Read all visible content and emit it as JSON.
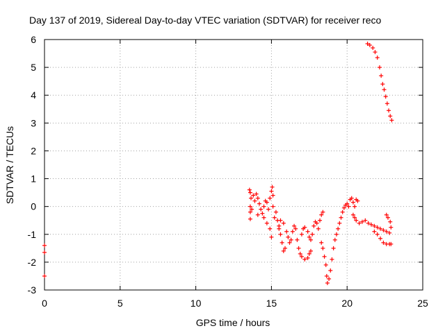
{
  "chart_data": {
    "type": "scatter",
    "title": "Day 137 of 2019, Sidereal Day-to-day VTEC variation (SDTVAR) for receiver reco",
    "xlabel": "GPS time / hours",
    "ylabel": "SDTVAR / TECUs",
    "xlim": [
      0,
      25
    ],
    "ylim": [
      -3,
      6
    ],
    "x_ticks": [
      "0",
      "5",
      "10",
      "15",
      "20",
      "25"
    ],
    "y_ticks": [
      "-3",
      "-2",
      "-1",
      "0",
      "1",
      "2",
      "3",
      "4",
      "5",
      "6"
    ],
    "grid": true,
    "marker": "+",
    "series": [
      {
        "name": "SDTVAR",
        "color": "#ff0000",
        "points": [
          [
            0.0,
            -1.4
          ],
          [
            0.0,
            -1.65
          ],
          [
            0.0,
            -2.5
          ],
          [
            13.55,
            0.6
          ],
          [
            13.6,
            0.5
          ],
          [
            13.65,
            0.3
          ],
          [
            13.6,
            0.0
          ],
          [
            13.6,
            -0.2
          ],
          [
            13.6,
            -0.45
          ],
          [
            13.7,
            -0.1
          ],
          [
            13.8,
            0.4
          ],
          [
            13.9,
            0.2
          ],
          [
            14.0,
            0.45
          ],
          [
            14.1,
            0.3
          ],
          [
            14.2,
            0.1
          ],
          [
            14.3,
            -0.1
          ],
          [
            14.1,
            -0.3
          ],
          [
            14.4,
            -0.25
          ],
          [
            14.5,
            0.0
          ],
          [
            14.6,
            0.2
          ],
          [
            14.7,
            0.15
          ],
          [
            14.8,
            -0.1
          ],
          [
            14.9,
            0.3
          ],
          [
            15.0,
            0.55
          ],
          [
            15.05,
            0.7
          ],
          [
            15.1,
            0.4
          ],
          [
            15.1,
            0.0
          ],
          [
            14.5,
            -0.4
          ],
          [
            14.7,
            -0.6
          ],
          [
            14.9,
            -0.8
          ],
          [
            15.0,
            -1.1
          ],
          [
            15.2,
            -0.4
          ],
          [
            15.3,
            -0.2
          ],
          [
            15.4,
            -0.5
          ],
          [
            15.5,
            -0.8
          ],
          [
            15.6,
            -1.0
          ],
          [
            15.7,
            -1.3
          ],
          [
            15.8,
            -1.6
          ],
          [
            15.9,
            -1.5
          ],
          [
            15.5,
            -0.7
          ],
          [
            15.6,
            -0.5
          ],
          [
            15.8,
            -0.6
          ],
          [
            16.0,
            -0.9
          ],
          [
            16.1,
            -1.1
          ],
          [
            16.2,
            -1.3
          ],
          [
            16.3,
            -1.2
          ],
          [
            16.4,
            -0.9
          ],
          [
            16.5,
            -0.7
          ],
          [
            16.6,
            -0.8
          ],
          [
            16.7,
            -1.2
          ],
          [
            16.8,
            -1.5
          ],
          [
            16.9,
            -1.7
          ],
          [
            17.0,
            -1.8
          ],
          [
            17.2,
            -1.9
          ],
          [
            17.4,
            -1.85
          ],
          [
            17.5,
            -1.7
          ],
          [
            17.6,
            -1.6
          ],
          [
            17.0,
            -1.0
          ],
          [
            17.1,
            -0.8
          ],
          [
            17.2,
            -0.75
          ],
          [
            17.4,
            -0.9
          ],
          [
            17.5,
            -1.1
          ],
          [
            17.6,
            -1.2
          ],
          [
            17.7,
            -1.0
          ],
          [
            17.8,
            -0.7
          ],
          [
            17.9,
            -0.55
          ],
          [
            18.0,
            -0.6
          ],
          [
            18.1,
            -0.8
          ],
          [
            18.2,
            -0.5
          ],
          [
            18.3,
            -0.3
          ],
          [
            18.4,
            -0.2
          ],
          [
            18.3,
            -1.3
          ],
          [
            18.4,
            -1.5
          ],
          [
            18.5,
            -1.8
          ],
          [
            18.6,
            -2.1
          ],
          [
            18.65,
            -2.5
          ],
          [
            18.7,
            -2.75
          ],
          [
            18.8,
            -2.6
          ],
          [
            18.9,
            -2.3
          ],
          [
            19.0,
            -1.9
          ],
          [
            19.1,
            -1.5
          ],
          [
            19.2,
            -1.2
          ],
          [
            19.3,
            -1.0
          ],
          [
            19.4,
            -0.8
          ],
          [
            19.5,
            -0.6
          ],
          [
            19.6,
            -0.4
          ],
          [
            19.7,
            -0.2
          ],
          [
            19.8,
            -0.05
          ],
          [
            19.9,
            0.05
          ],
          [
            20.0,
            0.1
          ],
          [
            20.1,
            0.0
          ],
          [
            20.2,
            0.25
          ],
          [
            20.3,
            0.3
          ],
          [
            20.4,
            0.15
          ],
          [
            20.5,
            0.0
          ],
          [
            20.6,
            0.25
          ],
          [
            20.7,
            0.2
          ],
          [
            20.4,
            -0.3
          ],
          [
            20.5,
            -0.4
          ],
          [
            20.6,
            -0.5
          ],
          [
            20.8,
            -0.6
          ],
          [
            21.0,
            -0.55
          ],
          [
            21.2,
            -0.5
          ],
          [
            21.4,
            -0.6
          ],
          [
            21.6,
            -0.65
          ],
          [
            21.8,
            -0.7
          ],
          [
            22.0,
            -0.75
          ],
          [
            22.2,
            -0.8
          ],
          [
            22.4,
            -0.85
          ],
          [
            22.6,
            -0.9
          ],
          [
            22.8,
            -0.95
          ],
          [
            22.9,
            -0.75
          ],
          [
            22.85,
            -0.55
          ],
          [
            22.7,
            -0.4
          ],
          [
            22.6,
            -0.3
          ],
          [
            21.8,
            -0.9
          ],
          [
            22.0,
            -1.0
          ],
          [
            22.2,
            -1.15
          ],
          [
            22.4,
            -1.3
          ],
          [
            22.6,
            -1.35
          ],
          [
            22.8,
            -1.35
          ],
          [
            22.9,
            -1.35
          ],
          [
            21.35,
            5.85
          ],
          [
            21.5,
            5.8
          ],
          [
            21.7,
            5.7
          ],
          [
            21.85,
            5.55
          ],
          [
            22.0,
            5.35
          ],
          [
            22.15,
            5.0
          ],
          [
            22.25,
            4.7
          ],
          [
            22.35,
            4.4
          ],
          [
            22.45,
            4.2
          ],
          [
            22.55,
            3.95
          ],
          [
            22.65,
            3.7
          ],
          [
            22.75,
            3.45
          ],
          [
            22.85,
            3.25
          ],
          [
            22.95,
            3.1
          ]
        ]
      }
    ]
  }
}
